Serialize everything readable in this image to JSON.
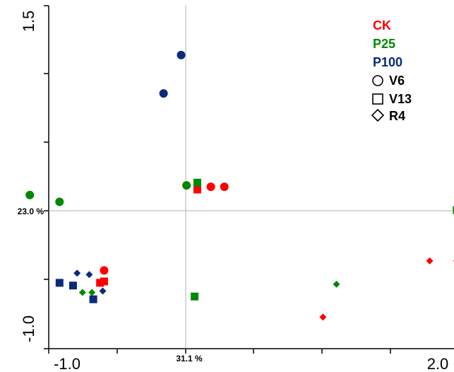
{
  "chart_data": {
    "type": "scatter",
    "title": "",
    "xlabel": "",
    "ylabel": "",
    "xlim": [
      -1.0,
      2.0
    ],
    "ylim": [
      -1.0,
      1.5
    ],
    "x_tick_labels": [
      "-1.0",
      "2.0"
    ],
    "y_tick_labels": [
      "1.5",
      "-1.0"
    ],
    "x_axis_percent_label": "31.1 %",
    "y_axis_percent_label": "23.0 %",
    "grid": false,
    "legend": {
      "placement": "top-right",
      "color_entries": [
        {
          "label": "CK",
          "color": "#ff0000"
        },
        {
          "label": "P25",
          "color": "#008800"
        },
        {
          "label": "P100",
          "color": "#0a2a7a"
        }
      ],
      "shape_entries": [
        {
          "label": "V6",
          "shape": "circle"
        },
        {
          "label": "V13",
          "shape": "square"
        },
        {
          "label": "R4",
          "shape": "diamond"
        }
      ]
    },
    "series": [
      {
        "name": "CK",
        "color": "#ff0000",
        "points": [
          {
            "x": 0.2,
            "y": 0.18,
            "shape": "circle"
          },
          {
            "x": 0.3,
            "y": 0.18,
            "shape": "circle"
          },
          {
            "x": -0.59,
            "y": -0.43,
            "shape": "circle"
          },
          {
            "x": 0.1,
            "y": 0.16,
            "shape": "square"
          },
          {
            "x": -0.62,
            "y": -0.52,
            "shape": "square"
          },
          {
            "x": -0.59,
            "y": -0.51,
            "shape": "square"
          },
          {
            "x": 1.82,
            "y": -0.36,
            "shape": "diamond"
          },
          {
            "x": 2.02,
            "y": -0.36,
            "shape": "diamond"
          },
          {
            "x": 1.03,
            "y": -0.77,
            "shape": "diamond"
          }
        ]
      },
      {
        "name": "P25",
        "color": "#008800",
        "points": [
          {
            "x": 0.02,
            "y": 0.19,
            "shape": "circle"
          },
          {
            "x": -1.14,
            "y": 0.12,
            "shape": "circle"
          },
          {
            "x": -0.92,
            "y": 0.07,
            "shape": "circle"
          },
          {
            "x": 0.1,
            "y": 0.21,
            "shape": "square"
          },
          {
            "x": 2.02,
            "y": 0.01,
            "shape": "square"
          },
          {
            "x": 0.08,
            "y": -0.62,
            "shape": "square"
          },
          {
            "x": 1.13,
            "y": -0.53,
            "shape": "diamond"
          },
          {
            "x": -0.75,
            "y": -0.59,
            "shape": "diamond"
          },
          {
            "x": -0.68,
            "y": -0.59,
            "shape": "diamond"
          }
        ]
      },
      {
        "name": "P100",
        "color": "#0a2a7a",
        "points": [
          {
            "x": -0.02,
            "y": 1.14,
            "shape": "circle"
          },
          {
            "x": -0.15,
            "y": 0.86,
            "shape": "circle"
          },
          {
            "x": -0.92,
            "y": -0.52,
            "shape": "square"
          },
          {
            "x": -0.82,
            "y": -0.54,
            "shape": "square"
          },
          {
            "x": -0.67,
            "y": -0.64,
            "shape": "square"
          },
          {
            "x": -0.79,
            "y": -0.45,
            "shape": "diamond"
          },
          {
            "x": -0.7,
            "y": -0.46,
            "shape": "diamond"
          },
          {
            "x": -0.6,
            "y": -0.58,
            "shape": "diamond"
          }
        ]
      }
    ]
  }
}
